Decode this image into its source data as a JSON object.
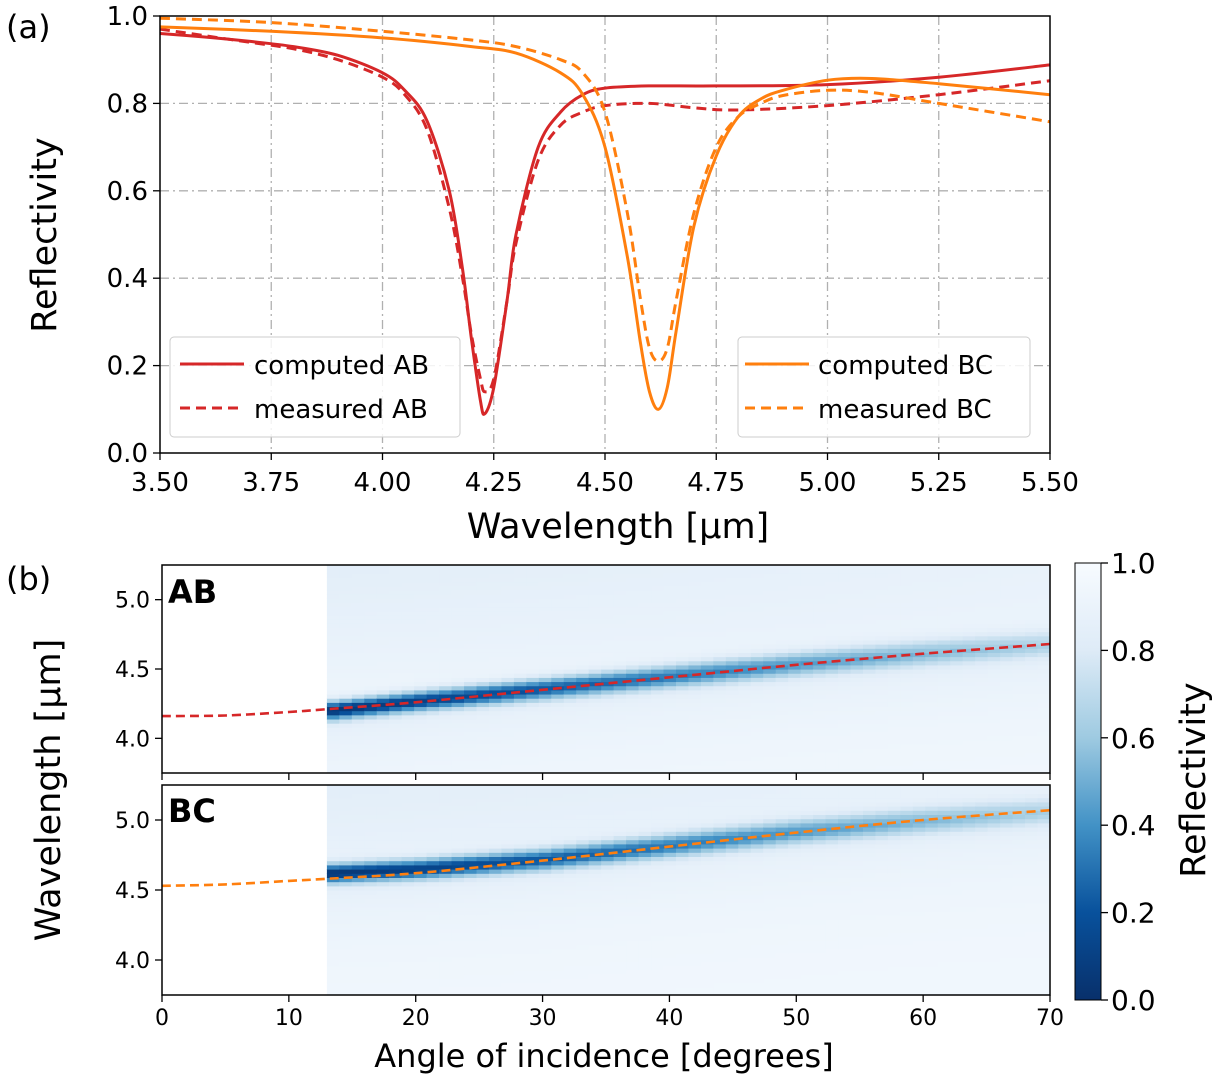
{
  "panel_a": {
    "panel_label": "(a)",
    "chart_data": {
      "type": "line",
      "title": "",
      "xlabel": "Wavelength [μm]",
      "ylabel": "Reflectivity",
      "xlim": [
        3.5,
        5.5
      ],
      "ylim": [
        0.0,
        1.0
      ],
      "xticks": [
        "3.50",
        "3.75",
        "4.00",
        "4.25",
        "4.50",
        "4.75",
        "5.00",
        "5.25",
        "5.50"
      ],
      "yticks": [
        "0.0",
        "0.2",
        "0.4",
        "0.6",
        "0.8",
        "1.0"
      ],
      "grid": true,
      "legends": [
        {
          "placement": "lower-left",
          "entries": [
            "computed AB",
            "measured AB"
          ]
        },
        {
          "placement": "lower-right",
          "entries": [
            "computed BC",
            "measured BC"
          ]
        }
      ],
      "series": [
        {
          "name": "computed AB",
          "color": "#d62728",
          "style": "solid",
          "x": [
            3.5,
            3.6,
            3.7,
            3.8,
            3.9,
            4.0,
            4.05,
            4.1,
            4.15,
            4.18,
            4.2,
            4.22,
            4.23,
            4.25,
            4.28,
            4.3,
            4.35,
            4.4,
            4.45,
            4.5,
            4.6,
            4.75,
            5.0,
            5.25,
            5.5
          ],
          "y": [
            0.96,
            0.952,
            0.942,
            0.93,
            0.91,
            0.87,
            0.83,
            0.76,
            0.6,
            0.42,
            0.26,
            0.12,
            0.09,
            0.15,
            0.35,
            0.5,
            0.7,
            0.78,
            0.82,
            0.835,
            0.84,
            0.84,
            0.843,
            0.86,
            0.888
          ]
        },
        {
          "name": "measured AB",
          "color": "#d62728",
          "style": "dashed",
          "x": [
            3.5,
            3.6,
            3.7,
            3.8,
            3.9,
            4.0,
            4.05,
            4.1,
            4.15,
            4.18,
            4.2,
            4.22,
            4.23,
            4.25,
            4.28,
            4.3,
            4.35,
            4.4,
            4.45,
            4.5,
            4.6,
            4.7,
            4.8,
            5.0,
            5.25,
            5.5
          ],
          "y": [
            0.97,
            0.955,
            0.94,
            0.925,
            0.9,
            0.86,
            0.82,
            0.74,
            0.56,
            0.4,
            0.27,
            0.17,
            0.14,
            0.17,
            0.35,
            0.48,
            0.67,
            0.75,
            0.78,
            0.795,
            0.8,
            0.79,
            0.785,
            0.795,
            0.82,
            0.852
          ]
        },
        {
          "name": "computed BC",
          "color": "#ff7f0e",
          "style": "solid",
          "x": [
            3.5,
            3.75,
            4.0,
            4.2,
            4.3,
            4.4,
            4.45,
            4.5,
            4.55,
            4.58,
            4.6,
            4.62,
            4.64,
            4.66,
            4.7,
            4.75,
            4.8,
            4.85,
            4.9,
            5.0,
            5.1,
            5.25,
            5.5
          ],
          "y": [
            0.975,
            0.965,
            0.95,
            0.93,
            0.915,
            0.87,
            0.82,
            0.7,
            0.45,
            0.25,
            0.14,
            0.1,
            0.15,
            0.28,
            0.52,
            0.68,
            0.77,
            0.81,
            0.83,
            0.853,
            0.857,
            0.845,
            0.82
          ]
        },
        {
          "name": "measured BC",
          "color": "#ff7f0e",
          "style": "dashed",
          "x": [
            3.5,
            3.75,
            4.0,
            4.2,
            4.3,
            4.4,
            4.45,
            4.5,
            4.55,
            4.58,
            4.6,
            4.62,
            4.64,
            4.66,
            4.7,
            4.75,
            4.8,
            4.85,
            4.9,
            5.0,
            5.1,
            5.25,
            5.5
          ],
          "y": [
            0.995,
            0.985,
            0.965,
            0.945,
            0.93,
            0.9,
            0.87,
            0.78,
            0.55,
            0.35,
            0.24,
            0.21,
            0.24,
            0.35,
            0.55,
            0.7,
            0.77,
            0.8,
            0.818,
            0.83,
            0.825,
            0.8,
            0.758
          ]
        }
      ]
    }
  },
  "panel_b": {
    "panel_label": "(b)",
    "chart_data": {
      "type": "heatmap",
      "title": "",
      "xlabel": "Angle of incidence [degrees]",
      "ylabel": "Wavelength [μm]",
      "xlim": [
        0,
        70
      ],
      "ylim": [
        3.75,
        5.25
      ],
      "xticks": [
        "0",
        "10",
        "20",
        "30",
        "40",
        "50",
        "60",
        "70"
      ],
      "yticks": [
        "4.0",
        "4.5",
        "5.0"
      ],
      "data_start_angle": 13,
      "colorbar": {
        "label": "Reflectivity",
        "range": [
          0.0,
          1.0
        ],
        "ticks": [
          "0.0",
          "0.2",
          "0.4",
          "0.6",
          "0.8",
          "1.0"
        ],
        "colormap": "Blues_r"
      },
      "subplots": [
        {
          "label": "AB",
          "line_color": "#d62728",
          "dashed_angle": [
            0,
            5,
            10,
            13,
            20,
            30,
            40,
            50,
            60,
            70
          ],
          "dashed_wavelength": [
            4.16,
            4.165,
            4.19,
            4.21,
            4.26,
            4.35,
            4.44,
            4.53,
            4.61,
            4.68
          ],
          "resonance_angle": [
            13,
            20,
            30,
            40,
            50,
            60,
            70
          ],
          "resonance_wavelength": [
            4.2,
            4.27,
            4.36,
            4.45,
            4.54,
            4.62,
            4.69
          ]
        },
        {
          "label": "BC",
          "line_color": "#ff7f0e",
          "dashed_angle": [
            0,
            5,
            10,
            13,
            20,
            30,
            40,
            50,
            60,
            70
          ],
          "dashed_wavelength": [
            4.53,
            4.54,
            4.565,
            4.58,
            4.62,
            4.71,
            4.81,
            4.91,
            5.0,
            5.07
          ],
          "resonance_angle": [
            13,
            20,
            30,
            40,
            50,
            60,
            70
          ],
          "resonance_wavelength": [
            4.62,
            4.65,
            4.72,
            4.82,
            4.92,
            5.0,
            5.07
          ]
        }
      ]
    }
  }
}
